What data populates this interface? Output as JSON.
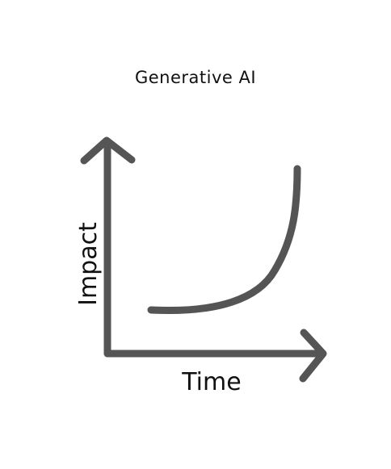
{
  "diagram": {
    "title": "Generative AI",
    "x_label": "Time",
    "y_label": "Impact",
    "stroke_color": "#555555",
    "text_color": "#111111",
    "curve_shape": "exponential-growth"
  }
}
